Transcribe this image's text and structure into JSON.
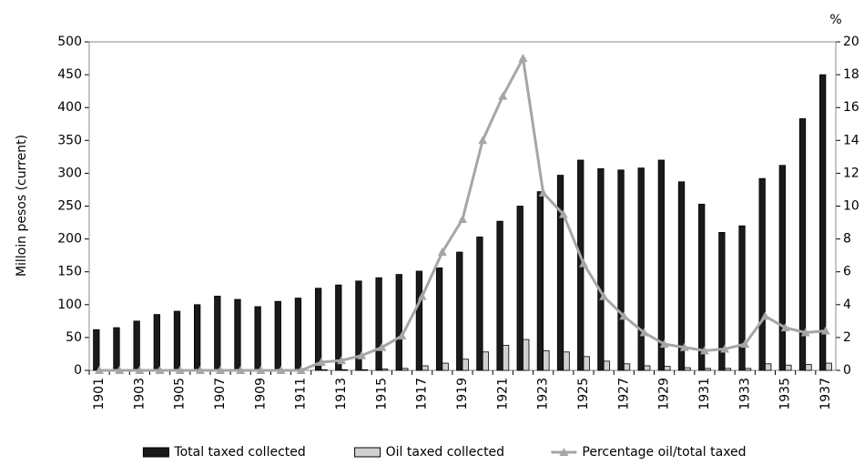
{
  "chart_data": {
    "type": "bar",
    "y_label": "Milloin pesos (current)",
    "y2_label": "%",
    "categories": [
      "1901",
      null,
      "1903",
      null,
      "1905",
      null,
      "1907",
      null,
      "1909",
      null,
      "1911",
      null,
      "1913",
      null,
      "1915",
      null,
      "1917",
      null,
      "1919",
      null,
      "1921",
      null,
      "1923",
      null,
      "1925",
      null,
      "1927",
      null,
      "1929",
      null,
      "1931",
      null,
      "1933",
      null,
      "1935",
      null,
      "1937"
    ],
    "ylim": [
      0,
      500
    ],
    "yticks": [
      0,
      50,
      100,
      150,
      200,
      250,
      300,
      350,
      400,
      450,
      500
    ],
    "y2lim": [
      0,
      20
    ],
    "y2ticks": [
      0,
      2,
      4,
      6,
      8,
      10,
      12,
      14,
      16,
      18,
      20
    ],
    "legend": "bottom",
    "series": [
      {
        "name": "Total taxed collected",
        "type": "bar",
        "color": "#1a1a1a",
        "values": [
          62,
          65,
          75,
          85,
          90,
          100,
          113,
          108,
          97,
          105,
          110,
          125,
          130,
          136,
          141,
          146,
          151,
          156,
          180,
          203,
          227,
          250,
          272,
          297,
          320,
          307,
          305,
          308,
          320,
          287,
          253,
          210,
          220,
          292,
          312,
          383,
          450
        ]
      },
      {
        "name": "Oil taxed collected",
        "type": "bar",
        "color": "#d0d0d0",
        "values": [
          0,
          0,
          0,
          0,
          0,
          0,
          0,
          0,
          0,
          0,
          0,
          1,
          1,
          1,
          2,
          3,
          7,
          11,
          17,
          28,
          38,
          47,
          30,
          28,
          21,
          14,
          10,
          7,
          6,
          4,
          3,
          3,
          3,
          10,
          8,
          9,
          11
        ]
      },
      {
        "name": "Percentage oil/total taxed",
        "type": "line",
        "axis": "y2",
        "color": "#a6a6a6",
        "values": [
          0,
          0,
          0,
          0,
          0,
          0,
          0,
          0,
          0,
          0,
          0,
          0.5,
          0.6,
          0.9,
          1.4,
          2.1,
          4.5,
          7.2,
          9.2,
          14,
          16.7,
          19,
          10.8,
          9.5,
          6.5,
          4.5,
          3.3,
          2.3,
          1.6,
          1.4,
          1.2,
          1.3,
          1.6,
          3.3,
          2.6,
          2.3,
          2.4
        ]
      }
    ]
  }
}
